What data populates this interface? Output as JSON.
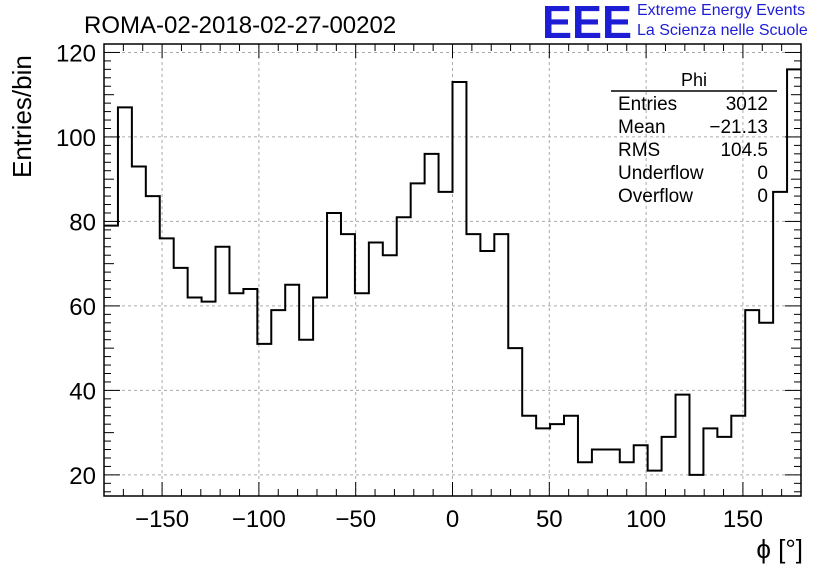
{
  "title": "ROMA-02-2018-02-27-00202",
  "logo": {
    "mark": "EEE",
    "line1": "Extreme Energy Events",
    "line2": "La Scienza nelle Scuole",
    "color": "#1d1dd6"
  },
  "stats_box": {
    "name": "Phi",
    "rows": [
      {
        "label": "Entries",
        "value": "3012"
      },
      {
        "label": "Mean",
        "value": "−21.13"
      },
      {
        "label": "RMS",
        "value": "104.5"
      },
      {
        "label": "Underflow",
        "value": "0"
      },
      {
        "label": "Overflow",
        "value": "0"
      }
    ]
  },
  "chart_data": {
    "type": "bar",
    "style": "step-histogram",
    "xlabel": "ϕ [°]",
    "ylabel": "Entries/bin",
    "xlim": [
      -180,
      180
    ],
    "ylim": [
      15,
      122
    ],
    "bin_width": 7.2,
    "x_ticks": [
      "−150",
      "−100",
      "−50",
      "0",
      "50",
      "100",
      "150"
    ],
    "x_tick_values": [
      -150,
      -100,
      -50,
      0,
      50,
      100,
      150
    ],
    "y_ticks": [
      "20",
      "40",
      "60",
      "80",
      "100",
      "120"
    ],
    "y_tick_values": [
      20,
      40,
      60,
      80,
      100,
      120
    ],
    "grid": true,
    "values": [
      79,
      107,
      93,
      86,
      76,
      69,
      62,
      61,
      74,
      63,
      64,
      51,
      59,
      65,
      52,
      62,
      82,
      77,
      63,
      75,
      72,
      81,
      89,
      96,
      87,
      113,
      77,
      73,
      77,
      50,
      34,
      31,
      32,
      34,
      23,
      26,
      26,
      23,
      27,
      21,
      29,
      39,
      20,
      31,
      29,
      34,
      59,
      56,
      87,
      116
    ],
    "line_color": "#000000"
  }
}
